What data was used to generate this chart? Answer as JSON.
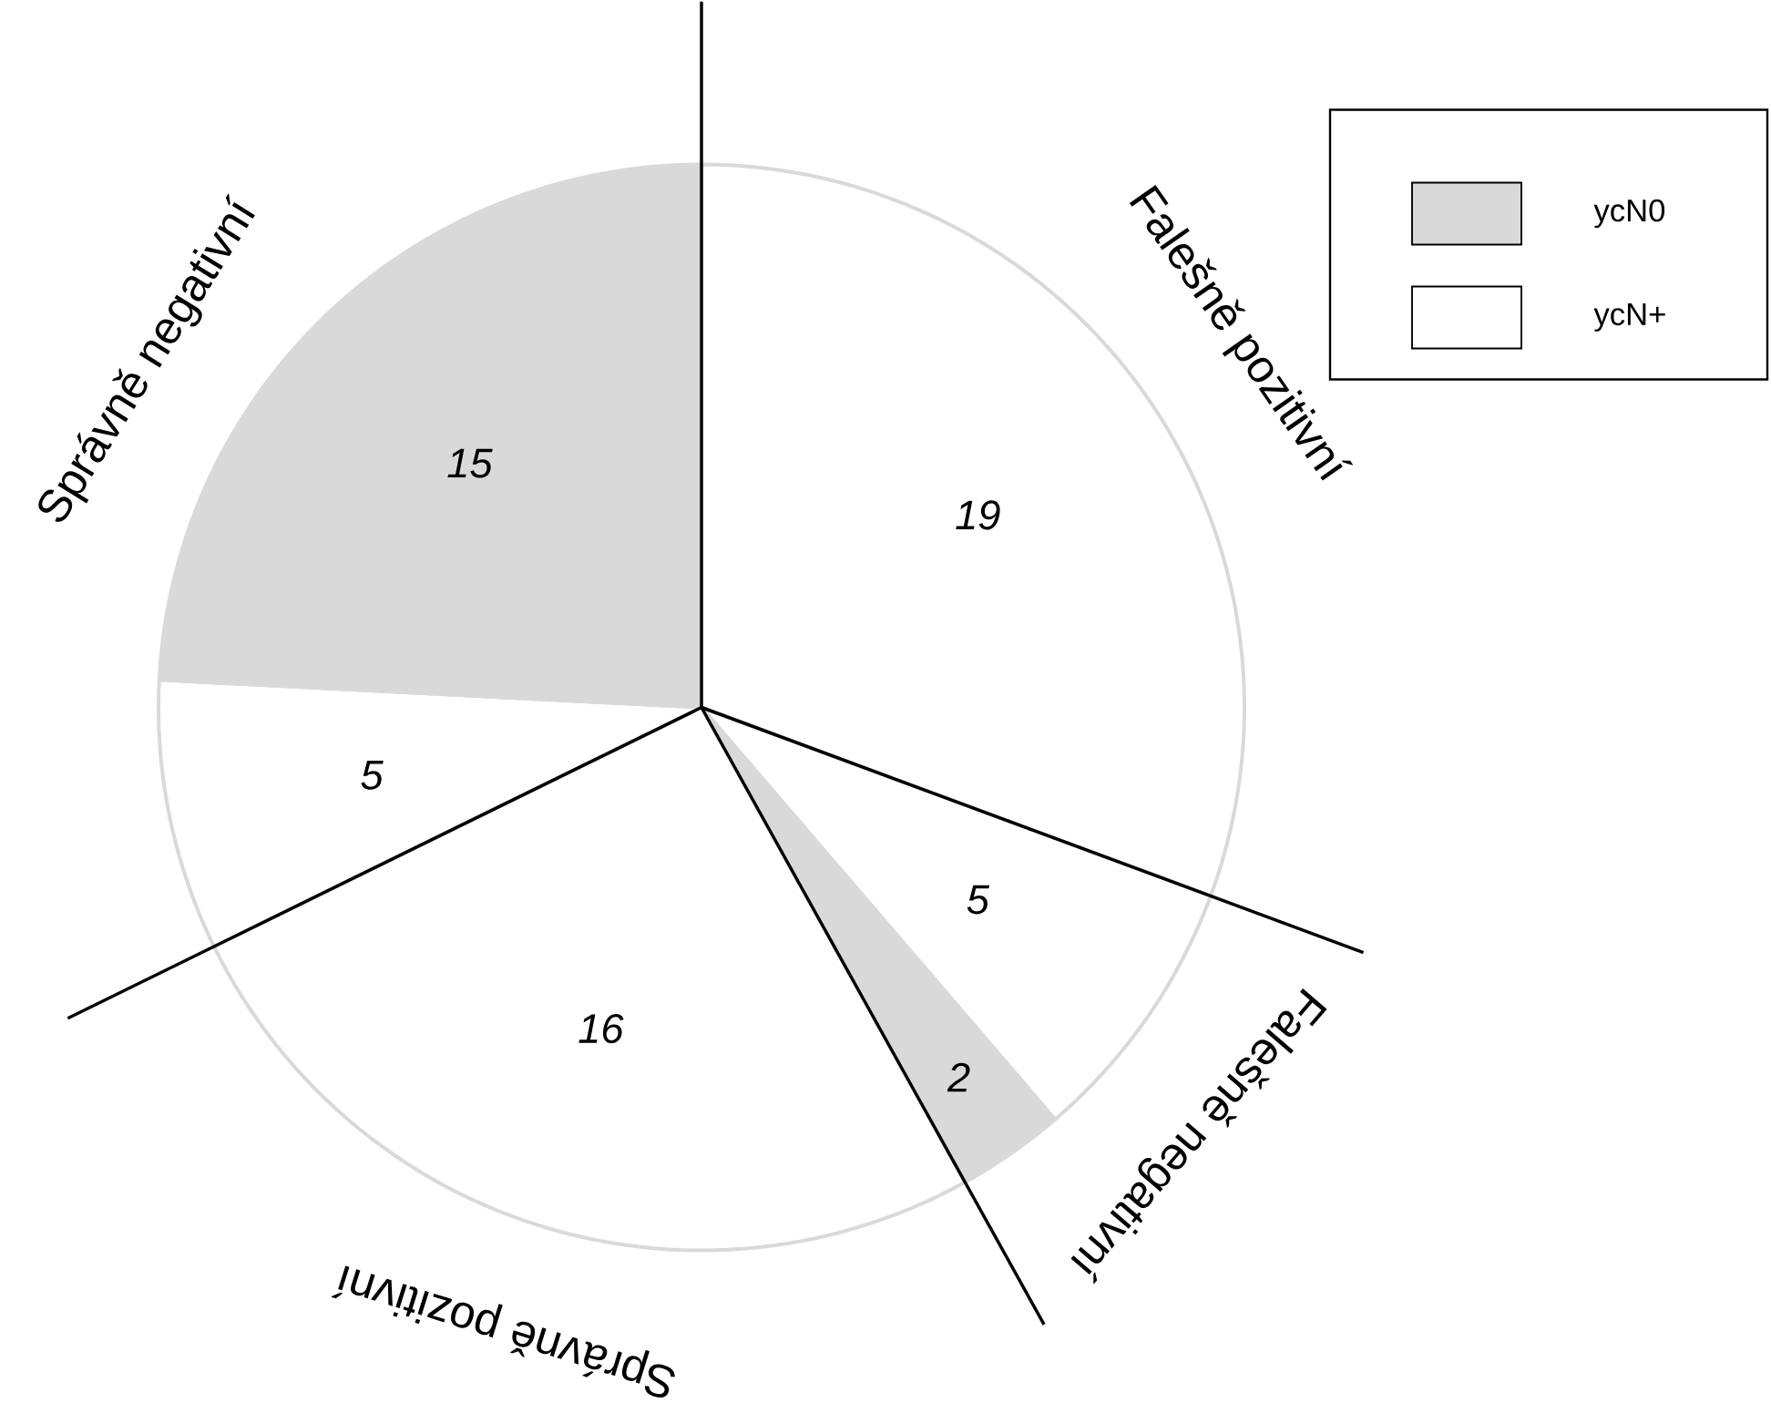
{
  "chart_data": {
    "type": "pie",
    "categories": [
      null,
      null,
      null,
      null,
      null,
      null
    ],
    "values": [
      19,
      5,
      2,
      16,
      5,
      15
    ],
    "colors": [
      "#ffffff",
      "#ffffff",
      "#d9d9d9",
      "#ffffff",
      "#ffffff",
      "#d9d9d9"
    ],
    "data_labels": true,
    "annotations": [
      "Falešně pozitivní",
      "Falešně negativní",
      "Správně pozitivní",
      "Správně negativní",
      "ycN0",
      "ycN+"
    ]
  }
}
